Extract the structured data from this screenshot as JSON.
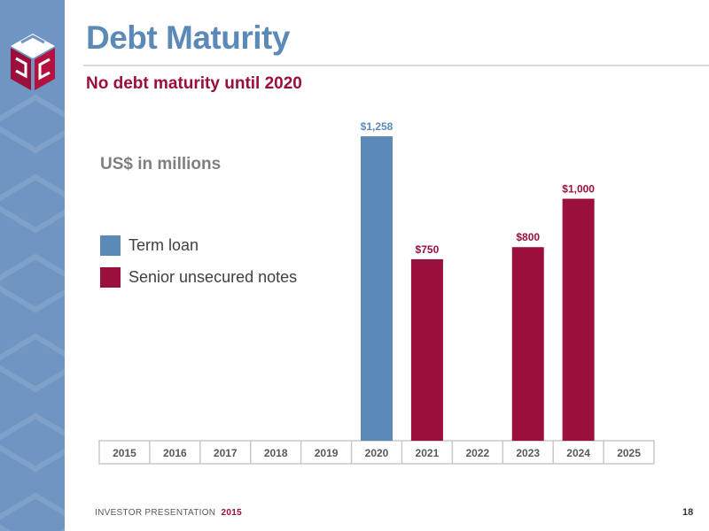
{
  "slide": {
    "title": "Debt Maturity",
    "subtitle": "No debt maturity until 2020",
    "unit_label": "US$ in millions",
    "footer_text": "INVESTOR PRESENTATION",
    "footer_year": "2015",
    "page_number": "18"
  },
  "colors": {
    "term_loan": "#5b8ab9",
    "senior_notes": "#9a0f3b",
    "sidebar": "#6f95c2"
  },
  "logo": {
    "icon": "meg-cube-logo-icon"
  },
  "chart_data": {
    "type": "bar",
    "categories": [
      "2015",
      "2016",
      "2017",
      "2018",
      "2019",
      "2020",
      "2021",
      "2022",
      "2023",
      "2024",
      "2025"
    ],
    "series": [
      {
        "name": "Term loan",
        "color": "#5b8ab9",
        "values": [
          0,
          0,
          0,
          0,
          0,
          1258,
          0,
          0,
          0,
          0,
          0
        ]
      },
      {
        "name": "Senior unsecured notes",
        "color": "#9a0f3b",
        "values": [
          0,
          0,
          0,
          0,
          0,
          0,
          750,
          0,
          800,
          1000,
          0
        ]
      }
    ],
    "data_labels": [
      "",
      "",
      "",
      "",
      "",
      "$1,258",
      "$750",
      "",
      "$800",
      "$1,000",
      ""
    ],
    "ylim": [
      0,
      1258
    ],
    "legend_position": "left",
    "grid": false,
    "title": "",
    "xlabel": "",
    "ylabel": ""
  }
}
